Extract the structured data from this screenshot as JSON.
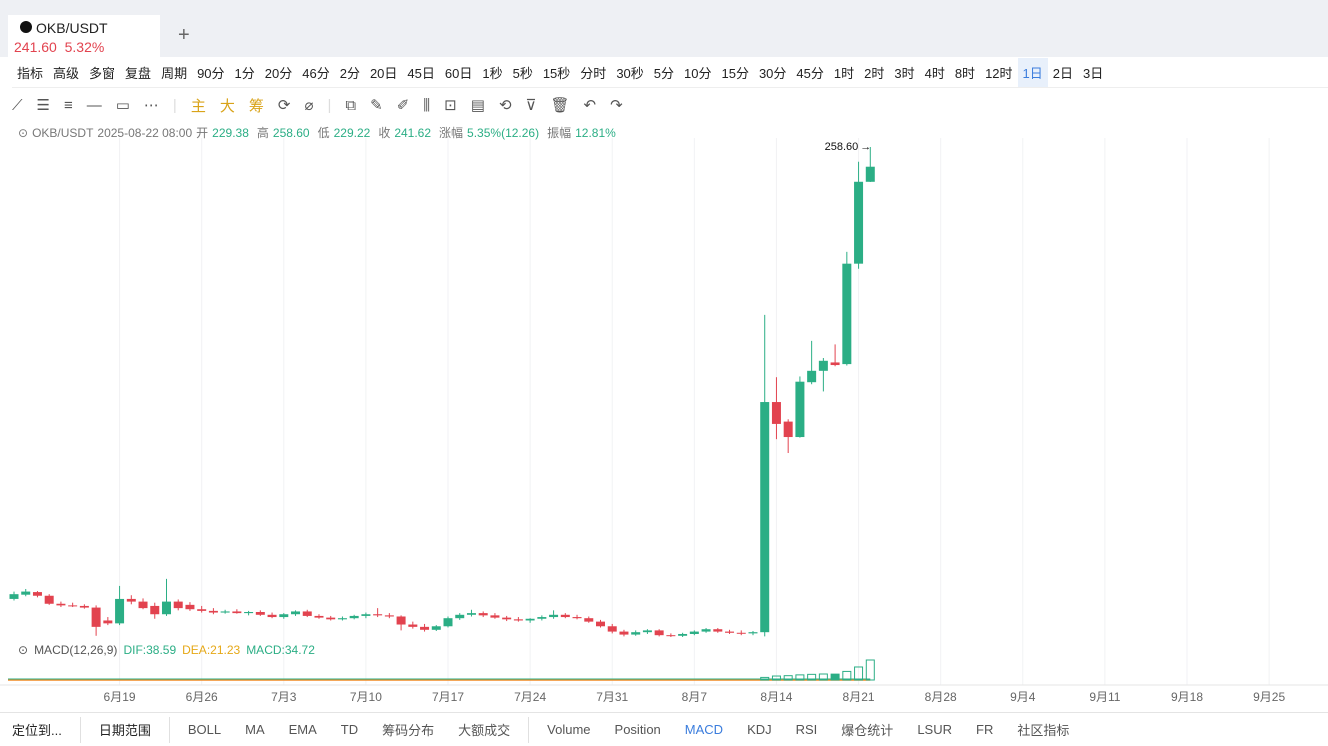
{
  "tab": {
    "symbol": "OKB/USDT",
    "price": "241.60",
    "change": "5.32%"
  },
  "toolbar": {
    "tools": [
      "指标",
      "高级",
      "多窗",
      "复盘",
      "周期"
    ],
    "periods": [
      "90分",
      "1分",
      "20分",
      "46分",
      "2分",
      "20日",
      "45日",
      "60日",
      "1秒",
      "5秒",
      "15秒",
      "分时",
      "30秒",
      "5分",
      "10分",
      "15分",
      "30分",
      "45分",
      "1时",
      "2时",
      "3时",
      "4时",
      "8时",
      "12时",
      "1日",
      "2日",
      "3日"
    ],
    "selected": "1日"
  },
  "drawing_tools": [
    "主",
    "大",
    "筹"
  ],
  "info": {
    "symbol": "OKB/USDT",
    "time": "2025-08-22 08:00",
    "fields": [
      {
        "label": "开",
        "value": "229.38"
      },
      {
        "label": "高",
        "value": "258.60"
      },
      {
        "label": "低",
        "value": "229.22"
      },
      {
        "label": "收",
        "value": "241.62"
      },
      {
        "label": "涨幅",
        "value": "5.35%(12.26)"
      },
      {
        "label": "振幅",
        "value": "12.81%"
      }
    ]
  },
  "chart_data": {
    "type": "candlestick",
    "log_scale": true,
    "up_color": "#2bae85",
    "down_color": "#e2434f",
    "max_label": "258.60",
    "categories": [
      null,
      null,
      null,
      null,
      null,
      null,
      null,
      null,
      null,
      "6月19",
      null,
      null,
      null,
      null,
      null,
      null,
      "6月26",
      null,
      null,
      null,
      null,
      null,
      null,
      "7月3",
      null,
      null,
      null,
      null,
      null,
      null,
      "7月10",
      null,
      null,
      null,
      null,
      null,
      null,
      "7月17",
      null,
      null,
      null,
      null,
      null,
      null,
      "7月24",
      null,
      null,
      null,
      null,
      null,
      null,
      "7月31",
      null,
      null,
      null,
      null,
      null,
      null,
      "8月7",
      null,
      null,
      null,
      null,
      null,
      null,
      "8月14",
      null,
      null,
      null,
      null,
      null,
      null,
      "8月21",
      null
    ],
    "future_categories": [
      "8月28",
      "9月4",
      "9月11",
      "9月18",
      "9月25"
    ],
    "open": [
      54.5,
      55.3,
      55.8,
      55.1,
      53.6,
      53.3,
      53.2,
      52.9,
      50.6,
      50.1,
      54.5,
      54.0,
      53.2,
      51.7,
      54.0,
      53.4,
      52.6,
      52.3,
      52.0,
      52.2,
      51.9,
      52.1,
      51.6,
      51.2,
      51.7,
      52.2,
      51.4,
      51.1,
      50.8,
      51.0,
      51.4,
      51.7,
      51.5,
      51.3,
      49.9,
      49.5,
      49.0,
      49.6,
      51.0,
      51.6,
      51.9,
      51.5,
      51.1,
      50.8,
      50.6,
      50.9,
      51.2,
      51.6,
      51.2,
      51.0,
      50.4,
      49.6,
      48.7,
      48.2,
      48.6,
      48.9,
      48.1,
      48.0,
      48.3,
      48.7,
      49.1,
      48.7,
      48.5,
      48.4,
      48.6,
      107.4,
      100.4,
      95.2,
      115.0,
      119.6,
      123.1,
      122.4,
      173.0,
      229.38
    ],
    "high": [
      55.9,
      56.4,
      56.0,
      55.4,
      54.0,
      53.8,
      53.5,
      53.3,
      51.2,
      57.0,
      55.2,
      54.6,
      53.8,
      58.4,
      54.4,
      53.9,
      53.2,
      52.8,
      52.5,
      52.6,
      52.3,
      52.4,
      52.0,
      51.9,
      52.4,
      52.5,
      51.7,
      51.4,
      51.3,
      51.6,
      52.0,
      52.8,
      51.9,
      51.5,
      50.4,
      50.0,
      49.8,
      51.3,
      51.9,
      52.5,
      52.2,
      51.9,
      51.4,
      51.2,
      51.0,
      51.5,
      52.4,
      51.9,
      51.6,
      51.3,
      50.7,
      50.0,
      49.0,
      48.9,
      49.1,
      49.1,
      48.4,
      48.5,
      48.9,
      49.3,
      49.3,
      49.0,
      48.9,
      48.8,
      145.0,
      117.0,
      101.2,
      117.3,
      132.6,
      125.0,
      131.0,
      180.2,
      245.8,
      258.6
    ],
    "low": [
      54.2,
      55.0,
      54.8,
      53.4,
      53.0,
      53.0,
      52.7,
      48.0,
      49.8,
      49.8,
      53.5,
      52.6,
      50.9,
      51.4,
      52.4,
      52.3,
      52.0,
      51.7,
      51.8,
      51.8,
      51.5,
      51.4,
      51.0,
      50.9,
      51.4,
      51.2,
      50.9,
      50.6,
      50.6,
      50.8,
      51.0,
      51.2,
      51.0,
      48.9,
      49.2,
      48.7,
      48.8,
      49.4,
      50.7,
      51.3,
      51.2,
      50.9,
      50.5,
      50.4,
      50.2,
      50.6,
      50.9,
      51.0,
      50.8,
      50.2,
      49.4,
      48.4,
      47.9,
      48.0,
      48.3,
      47.9,
      47.8,
      47.8,
      48.1,
      48.5,
      48.5,
      48.3,
      48.1,
      48.1,
      47.9,
      94.5,
      90.1,
      95.0,
      114.2,
      111.4,
      121.5,
      121.8,
      170.0,
      229.22
    ],
    "close": [
      55.4,
      55.9,
      55.1,
      53.6,
      53.3,
      53.2,
      52.9,
      49.5,
      50.1,
      54.5,
      54.0,
      52.8,
      51.7,
      54.0,
      52.8,
      52.6,
      52.3,
      52.0,
      52.2,
      51.9,
      52.1,
      51.6,
      51.2,
      51.7,
      52.2,
      51.4,
      51.1,
      50.8,
      51.0,
      51.4,
      51.7,
      51.5,
      51.3,
      49.9,
      49.5,
      49.0,
      49.6,
      51.0,
      51.6,
      51.9,
      51.5,
      51.1,
      50.8,
      50.6,
      50.9,
      51.2,
      51.6,
      51.2,
      51.0,
      50.4,
      49.6,
      48.7,
      48.2,
      48.6,
      48.9,
      48.1,
      48.0,
      48.3,
      48.7,
      49.1,
      48.7,
      48.5,
      48.4,
      48.6,
      107.4,
      99.6,
      95.2,
      115.2,
      119.6,
      123.8,
      122.0,
      173.0,
      229.4,
      241.62
    ]
  },
  "indicator": {
    "title": "MACD(12,26,9)",
    "dif": "DIF:38.59",
    "dea": "DEA:21.23",
    "macd": "MACD:34.72",
    "histogram": [
      4.5,
      6.9,
      7.5,
      8.9,
      9.8,
      10.4,
      10.2,
      14.9,
      22.6,
      34.72
    ]
  },
  "bottom_bar": {
    "locate": "定位到...",
    "range": "日期范围",
    "indicators": [
      "BOLL",
      "MA",
      "EMA",
      "TD",
      "筹码分布",
      "大额成交",
      "Volume",
      "Position",
      "MACD",
      "KDJ",
      "RSI",
      "爆仓统计",
      "LSUR",
      "FR"
    ],
    "community": "社区指标",
    "selected": "MACD"
  }
}
